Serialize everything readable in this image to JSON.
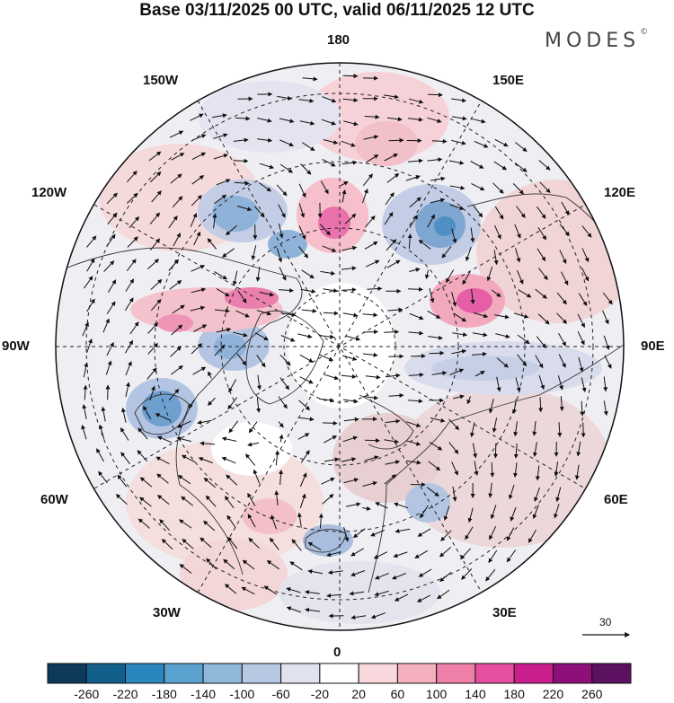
{
  "title": "Base 03/11/2025 00 UTC, valid 06/11/2025 12 UTC",
  "brand": "MODES",
  "brand_mark": "©",
  "map": {
    "projection": "north-polar-stereographic",
    "longitude_labels": {
      "top": "180",
      "bottom": "0",
      "left": "90W",
      "right": "90E",
      "upper_left_1": "150W",
      "upper_left_2": "120W",
      "lower_left_1": "60W",
      "lower_left_2": "30W",
      "upper_right_1": "150E",
      "upper_right_2": "120E",
      "lower_right_1": "60E",
      "lower_right_2": "30E"
    },
    "wind_reference_value": "30"
  },
  "colorbar": {
    "ticks": [
      "-260",
      "-220",
      "-180",
      "-140",
      "-100",
      "-60",
      "-20",
      "20",
      "60",
      "100",
      "140",
      "180",
      "220",
      "260"
    ],
    "colors": [
      "#0d3a5a",
      "#135f8c",
      "#2b86bd",
      "#5aa3d0",
      "#8fb8db",
      "#b8c7e2",
      "#e0e2f0",
      "#ffffff",
      "#f8d8dc",
      "#f4b0bc",
      "#ee7fa8",
      "#e64fa0",
      "#c91e8c",
      "#8e0f7a",
      "#5c1060"
    ]
  }
}
